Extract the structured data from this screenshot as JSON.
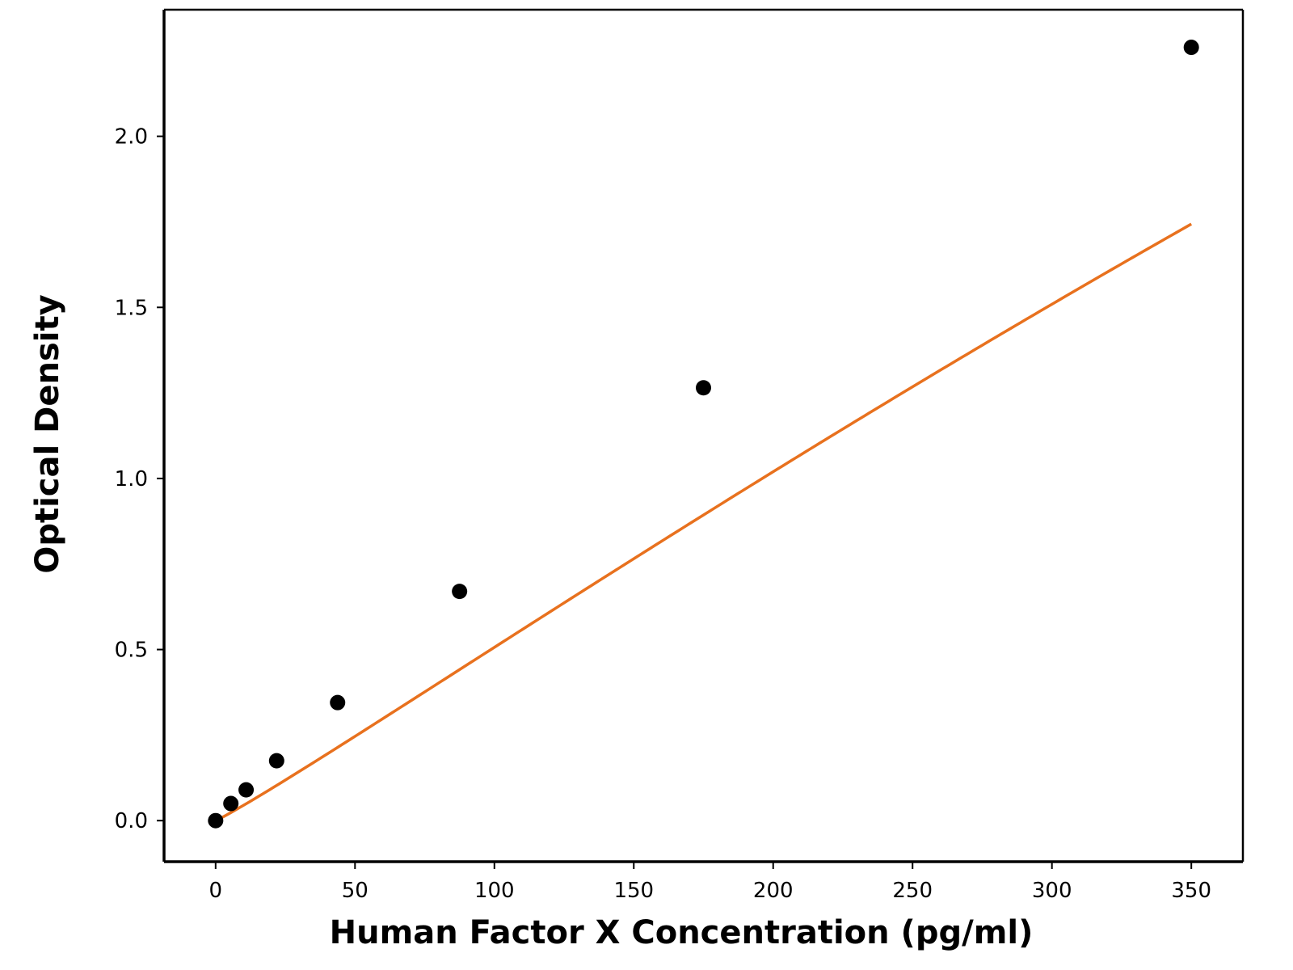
{
  "chart_data": {
    "type": "scatter",
    "title": "",
    "xlabel": "Human Factor X Concentration (pg/ml)",
    "ylabel": "Optical Density",
    "xlim": [
      -18.5,
      368.5
    ],
    "ylim": [
      -0.12,
      2.37
    ],
    "x_ticks": [
      0,
      50,
      100,
      150,
      200,
      250,
      300,
      350
    ],
    "x_tick_labels": [
      "0",
      "50",
      "100",
      "150",
      "200",
      "250",
      "300",
      "350"
    ],
    "y_ticks": [
      0.0,
      0.5,
      1.0,
      1.5,
      2.0
    ],
    "y_tick_labels": [
      "0.0",
      "0.5",
      "1.0",
      "1.5",
      "2.0"
    ],
    "grid": false,
    "legend": "none",
    "series": [
      {
        "type": "scatter",
        "x": [
          0,
          5.47,
          10.94,
          21.88,
          43.75,
          87.5,
          175,
          350
        ],
        "y": [
          0.0,
          0.05,
          0.09,
          0.175,
          0.345,
          0.67,
          1.265,
          2.26
        ],
        "color": "#000000"
      },
      {
        "type": "line",
        "fit": "4PL",
        "fit_params": {
          "A": 0.0,
          "B": 1.07,
          "C": 2000,
          "D": 13.0
        },
        "x_range": [
          0,
          350
        ],
        "color": "#e8711e"
      }
    ]
  }
}
